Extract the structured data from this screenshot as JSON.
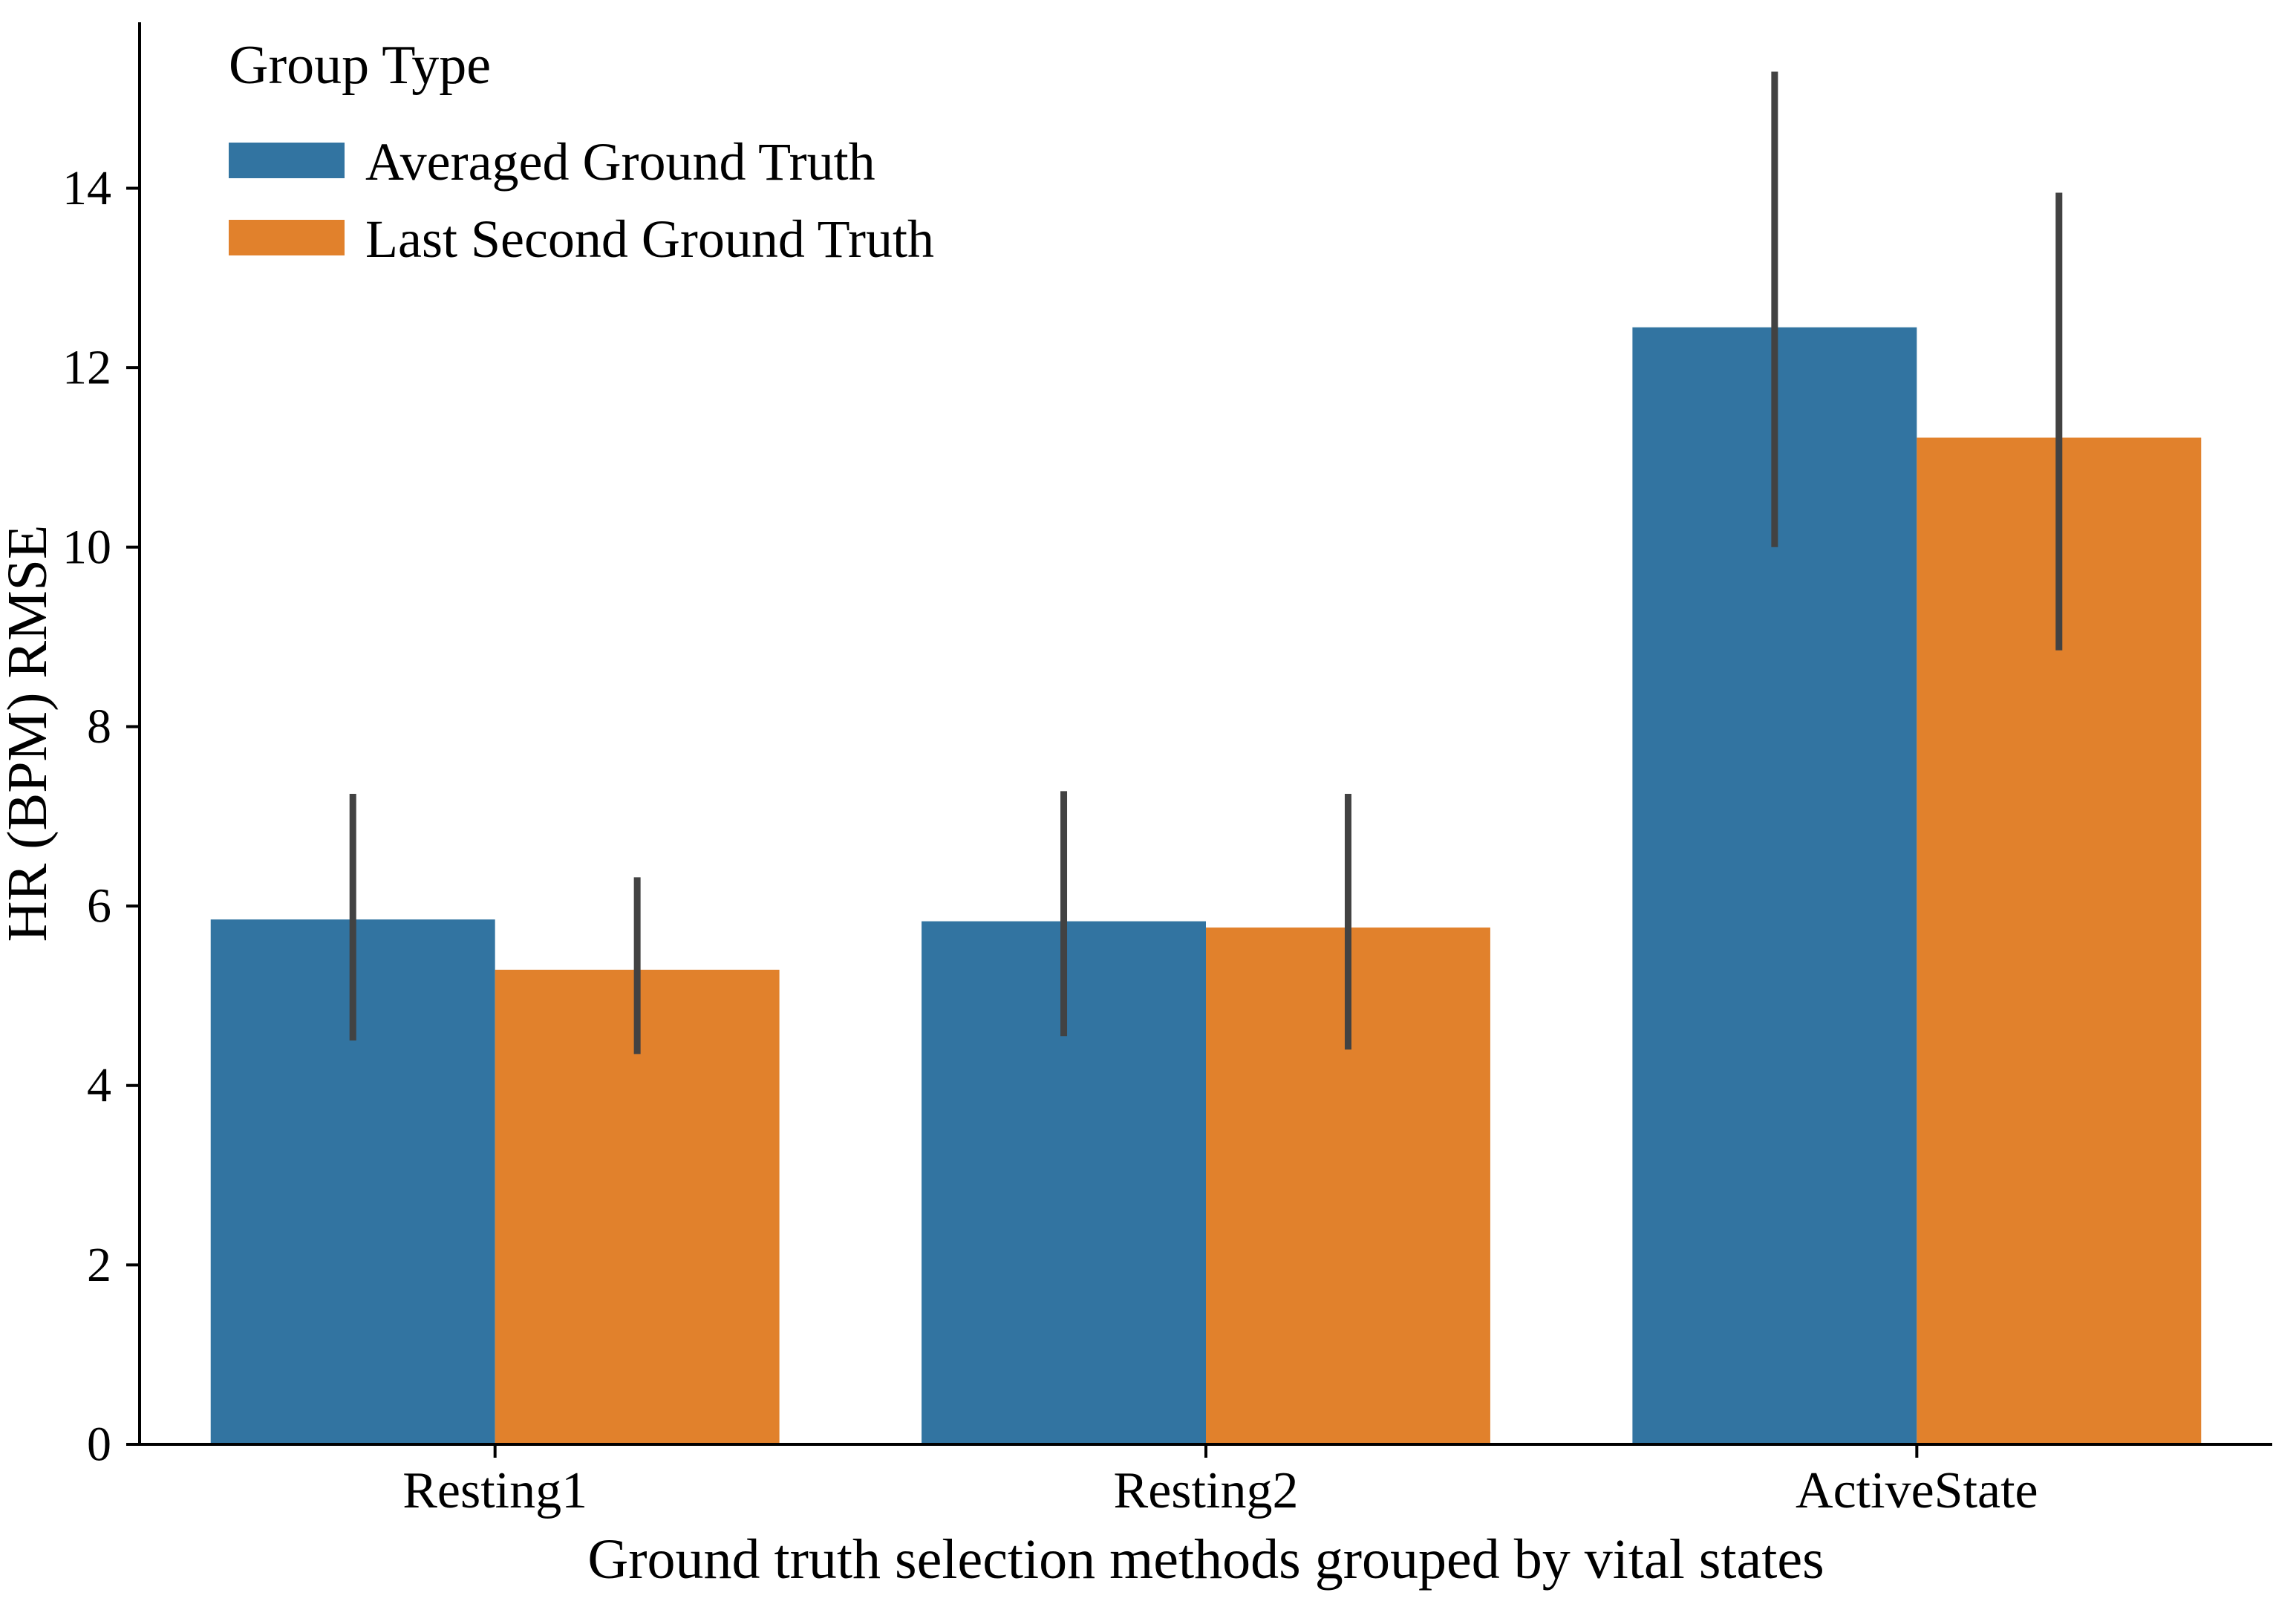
{
  "chart_data": {
    "type": "bar",
    "title": "",
    "xlabel": "Ground truth selection methods grouped by vital states",
    "ylabel": "HR (BPM) RMSE",
    "categories": [
      "Resting1",
      "Resting2",
      "ActiveState"
    ],
    "series": [
      {
        "name": "Averaged Ground Truth",
        "color": "#3274a1",
        "values": [
          5.85,
          5.83,
          12.45
        ],
        "error_low": [
          4.5,
          4.55,
          10.0
        ],
        "error_high": [
          7.25,
          7.28,
          15.3
        ]
      },
      {
        "name": "Last Second Ground Truth",
        "color": "#e1812c",
        "values": [
          5.29,
          5.76,
          11.22
        ],
        "error_low": [
          4.35,
          4.4,
          8.85
        ],
        "error_high": [
          6.32,
          7.25,
          13.95
        ]
      }
    ],
    "legend": {
      "title": "Group Type",
      "position": "upper left"
    },
    "yticks": [
      0,
      2,
      4,
      6,
      8,
      10,
      12,
      14
    ],
    "ylim": [
      0,
      15.85
    ],
    "grid": false,
    "bar_group_width": 0.8,
    "error_bar_color": "#424242",
    "axis_color": "#000000",
    "background": "#ffffff"
  }
}
